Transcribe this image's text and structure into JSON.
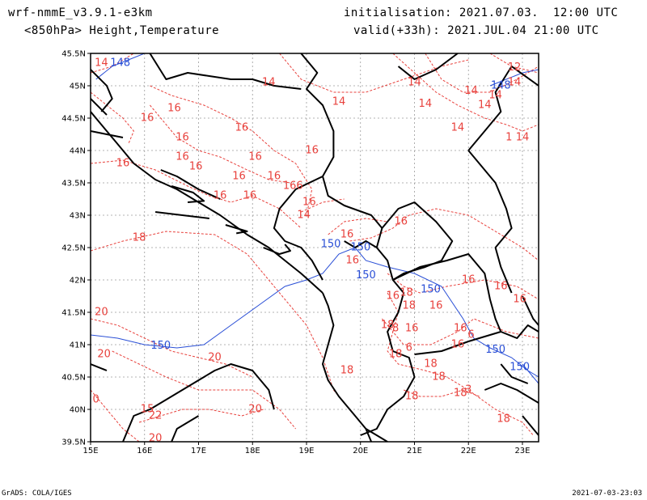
{
  "header": {
    "model": "wrf-nmmE_v3.9.1-e3km",
    "variables": "<850hPa> Height,Temperature",
    "init": "initialisation: 2021.07.03.  12:00 UTC",
    "valid": "valid(+33h): 2021.JUL.04 21:00 UTC"
  },
  "footer": {
    "left": "GrADS: COLA/IGES",
    "right": "2021-07-03-23:03"
  },
  "map": {
    "lon_range": [
      15,
      23.3
    ],
    "lat_range": [
      39.5,
      45.5
    ],
    "lon_ticks": [
      "15E",
      "16E",
      "17E",
      "18E",
      "19E",
      "20E",
      "21E",
      "22E",
      "23E"
    ],
    "lat_ticks": [
      "39.5N",
      "40N",
      "40.5N",
      "41N",
      "41.5N",
      "42N",
      "42.5N",
      "43N",
      "43.5N",
      "44N",
      "44.5N",
      "45N",
      "45.5N"
    ],
    "colors": {
      "temperature": "#e8413c",
      "height": "#2a4fd6",
      "coast": "#000000",
      "grid": "#9a9a9a"
    },
    "temperature_labels": [
      {
        "lon": 15.2,
        "lat": 45.35,
        "text": "14"
      },
      {
        "lon": 18.3,
        "lat": 45.05,
        "text": "14"
      },
      {
        "lon": 19.6,
        "lat": 44.75,
        "text": "14"
      },
      {
        "lon": 21.0,
        "lat": 45.05,
        "text": "14"
      },
      {
        "lon": 21.2,
        "lat": 44.72,
        "text": "14"
      },
      {
        "lon": 22.5,
        "lat": 44.85,
        "text": "14"
      },
      {
        "lon": 22.3,
        "lat": 44.7,
        "text": "14"
      },
      {
        "lon": 21.8,
        "lat": 44.35,
        "text": "14"
      },
      {
        "lon": 22.05,
        "lat": 44.92,
        "text": "14"
      },
      {
        "lon": 22.85,
        "lat": 45.05,
        "text": "14"
      },
      {
        "lon": 23.0,
        "lat": 44.2,
        "text": "14"
      },
      {
        "lon": 22.75,
        "lat": 44.2,
        "text": "1"
      },
      {
        "lon": 22.85,
        "lat": 45.28,
        "text": "12"
      },
      {
        "lon": 16.55,
        "lat": 44.65,
        "text": "16"
      },
      {
        "lon": 16.05,
        "lat": 44.5,
        "text": "16"
      },
      {
        "lon": 17.8,
        "lat": 44.35,
        "text": "16"
      },
      {
        "lon": 16.7,
        "lat": 44.2,
        "text": "16"
      },
      {
        "lon": 18.05,
        "lat": 43.9,
        "text": "16"
      },
      {
        "lon": 19.1,
        "lat": 44.0,
        "text": "16"
      },
      {
        "lon": 16.7,
        "lat": 43.9,
        "text": "16"
      },
      {
        "lon": 15.6,
        "lat": 43.8,
        "text": "16"
      },
      {
        "lon": 16.95,
        "lat": 43.75,
        "text": "16"
      },
      {
        "lon": 17.75,
        "lat": 43.6,
        "text": "16"
      },
      {
        "lon": 18.4,
        "lat": 43.6,
        "text": "16"
      },
      {
        "lon": 18.75,
        "lat": 43.45,
        "text": "166"
      },
      {
        "lon": 17.4,
        "lat": 43.3,
        "text": "16"
      },
      {
        "lon": 17.95,
        "lat": 43.3,
        "text": "16"
      },
      {
        "lon": 19.05,
        "lat": 43.2,
        "text": "16"
      },
      {
        "lon": 18.95,
        "lat": 43.0,
        "text": "14"
      },
      {
        "lon": 20.75,
        "lat": 42.9,
        "text": "16"
      },
      {
        "lon": 19.75,
        "lat": 42.7,
        "text": "16"
      },
      {
        "lon": 19.85,
        "lat": 42.3,
        "text": "16"
      },
      {
        "lon": 22.0,
        "lat": 42.0,
        "text": "16"
      },
      {
        "lon": 22.6,
        "lat": 41.9,
        "text": "16"
      },
      {
        "lon": 22.95,
        "lat": 41.7,
        "text": "16"
      },
      {
        "lon": 20.6,
        "lat": 41.75,
        "text": "16"
      },
      {
        "lon": 20.85,
        "lat": 41.8,
        "text": "18"
      },
      {
        "lon": 20.9,
        "lat": 41.6,
        "text": "18"
      },
      {
        "lon": 21.4,
        "lat": 41.6,
        "text": "16"
      },
      {
        "lon": 20.5,
        "lat": 41.3,
        "text": "18"
      },
      {
        "lon": 20.65,
        "lat": 41.25,
        "text": "8"
      },
      {
        "lon": 20.95,
        "lat": 41.25,
        "text": "16"
      },
      {
        "lon": 21.85,
        "lat": 41.25,
        "text": "16"
      },
      {
        "lon": 22.05,
        "lat": 41.15,
        "text": "6"
      },
      {
        "lon": 21.8,
        "lat": 41.0,
        "text": "16"
      },
      {
        "lon": 20.65,
        "lat": 40.85,
        "text": "18"
      },
      {
        "lon": 20.9,
        "lat": 40.95,
        "text": "6"
      },
      {
        "lon": 21.3,
        "lat": 40.7,
        "text": "18"
      },
      {
        "lon": 21.45,
        "lat": 40.5,
        "text": "18"
      },
      {
        "lon": 21.85,
        "lat": 40.25,
        "text": "18"
      },
      {
        "lon": 22.0,
        "lat": 40.3,
        "text": "3"
      },
      {
        "lon": 20.95,
        "lat": 40.2,
        "text": "18"
      },
      {
        "lon": 22.65,
        "lat": 39.85,
        "text": "18"
      },
      {
        "lon": 19.75,
        "lat": 40.6,
        "text": "18"
      },
      {
        "lon": 15.9,
        "lat": 42.65,
        "text": "18"
      },
      {
        "lon": 15.2,
        "lat": 41.5,
        "text": "20"
      },
      {
        "lon": 15.25,
        "lat": 40.85,
        "text": "20"
      },
      {
        "lon": 17.3,
        "lat": 40.8,
        "text": "20"
      },
      {
        "lon": 18.05,
        "lat": 40.0,
        "text": "20"
      },
      {
        "lon": 16.2,
        "lat": 39.9,
        "text": "22"
      },
      {
        "lon": 16.05,
        "lat": 40.0,
        "text": "15"
      },
      {
        "lon": 15.1,
        "lat": 40.15,
        "text": "0"
      },
      {
        "lon": 16.2,
        "lat": 39.55,
        "text": "20"
      }
    ],
    "height_labels": [
      {
        "lon": 15.55,
        "lat": 45.35,
        "text": "148"
      },
      {
        "lon": 22.6,
        "lat": 45.0,
        "text": "148"
      },
      {
        "lon": 19.45,
        "lat": 42.55,
        "text": "150"
      },
      {
        "lon": 20.0,
        "lat": 42.5,
        "text": "150"
      },
      {
        "lon": 20.1,
        "lat": 42.07,
        "text": "150"
      },
      {
        "lon": 21.3,
        "lat": 41.85,
        "text": "150"
      },
      {
        "lon": 16.3,
        "lat": 40.98,
        "text": "150"
      },
      {
        "lon": 22.5,
        "lat": 40.92,
        "text": "150"
      },
      {
        "lon": 22.95,
        "lat": 40.65,
        "text": "150"
      }
    ]
  }
}
